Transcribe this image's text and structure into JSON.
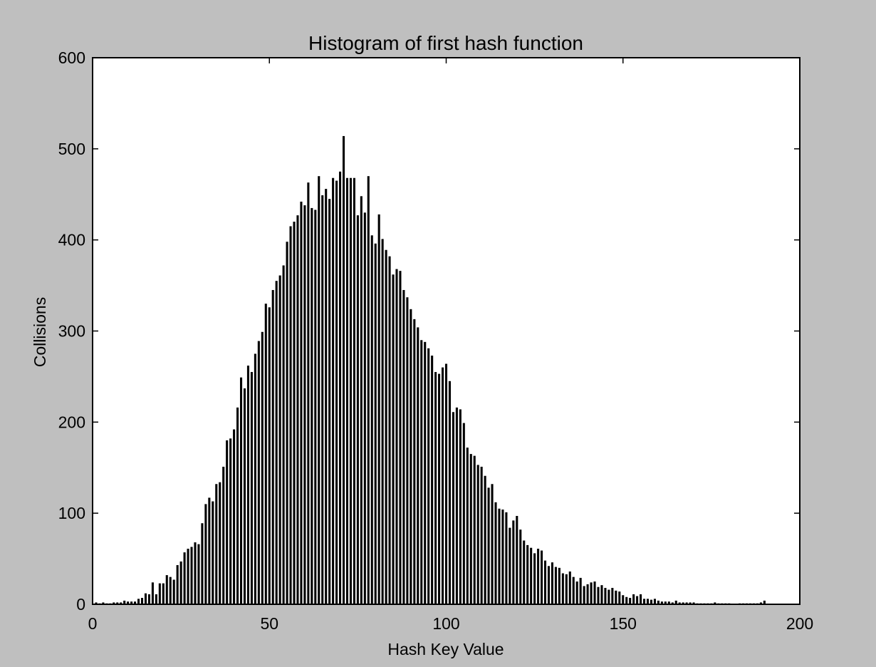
{
  "chart_data": {
    "type": "bar",
    "title": "Histogram of first hash function",
    "xlabel": "Hash Key Value",
    "ylabel": "Collisions",
    "xlim": [
      0,
      200
    ],
    "ylim": [
      0,
      600
    ],
    "xticks": [
      0,
      50,
      100,
      150,
      200
    ],
    "yticks": [
      0,
      100,
      200,
      300,
      400,
      500,
      600
    ],
    "grid": false,
    "bar_color": "#000000",
    "plot_background": "#ffffff",
    "figure_background": "#bfbfbf",
    "series": [
      {
        "x_start": 1,
        "values": [
          2,
          1,
          2,
          1,
          1,
          2,
          2,
          2,
          4,
          3,
          3,
          3,
          6,
          7,
          12,
          11,
          24,
          11,
          23,
          23,
          32,
          30,
          27,
          43,
          47,
          57,
          61,
          63,
          68,
          66,
          89,
          110,
          117,
          113,
          132,
          134,
          151,
          180,
          182,
          192,
          216,
          249,
          237,
          262,
          255,
          275,
          289,
          299,
          330,
          326,
          345,
          355,
          361,
          372,
          398,
          415,
          420,
          427,
          442,
          438,
          463,
          435,
          433,
          470,
          449,
          456,
          445,
          468,
          465,
          475,
          514,
          468,
          468,
          468,
          427,
          448,
          430,
          470,
          405,
          396,
          428,
          401,
          389,
          382,
          362,
          368,
          366,
          345,
          337,
          324,
          313,
          304,
          290,
          288,
          281,
          273,
          255,
          253,
          260,
          264,
          245,
          211,
          216,
          214,
          199,
          172,
          165,
          163,
          153,
          151,
          141,
          128,
          132,
          112,
          105,
          104,
          101,
          84,
          92,
          97,
          82,
          70,
          65,
          62,
          56,
          61,
          59,
          48,
          42,
          46,
          41,
          40,
          34,
          33,
          36,
          30,
          25,
          29,
          20,
          22,
          24,
          25,
          19,
          21,
          18,
          16,
          18,
          15,
          14,
          10,
          8,
          7,
          11,
          9,
          11,
          6,
          6,
          5,
          6,
          4,
          3,
          3,
          3,
          2,
          4,
          2,
          2,
          2,
          2,
          2,
          1,
          1,
          1,
          1,
          1,
          2,
          1,
          1,
          1,
          1,
          0,
          0,
          1,
          1,
          1,
          1,
          1,
          1,
          2,
          4
        ]
      }
    ]
  }
}
